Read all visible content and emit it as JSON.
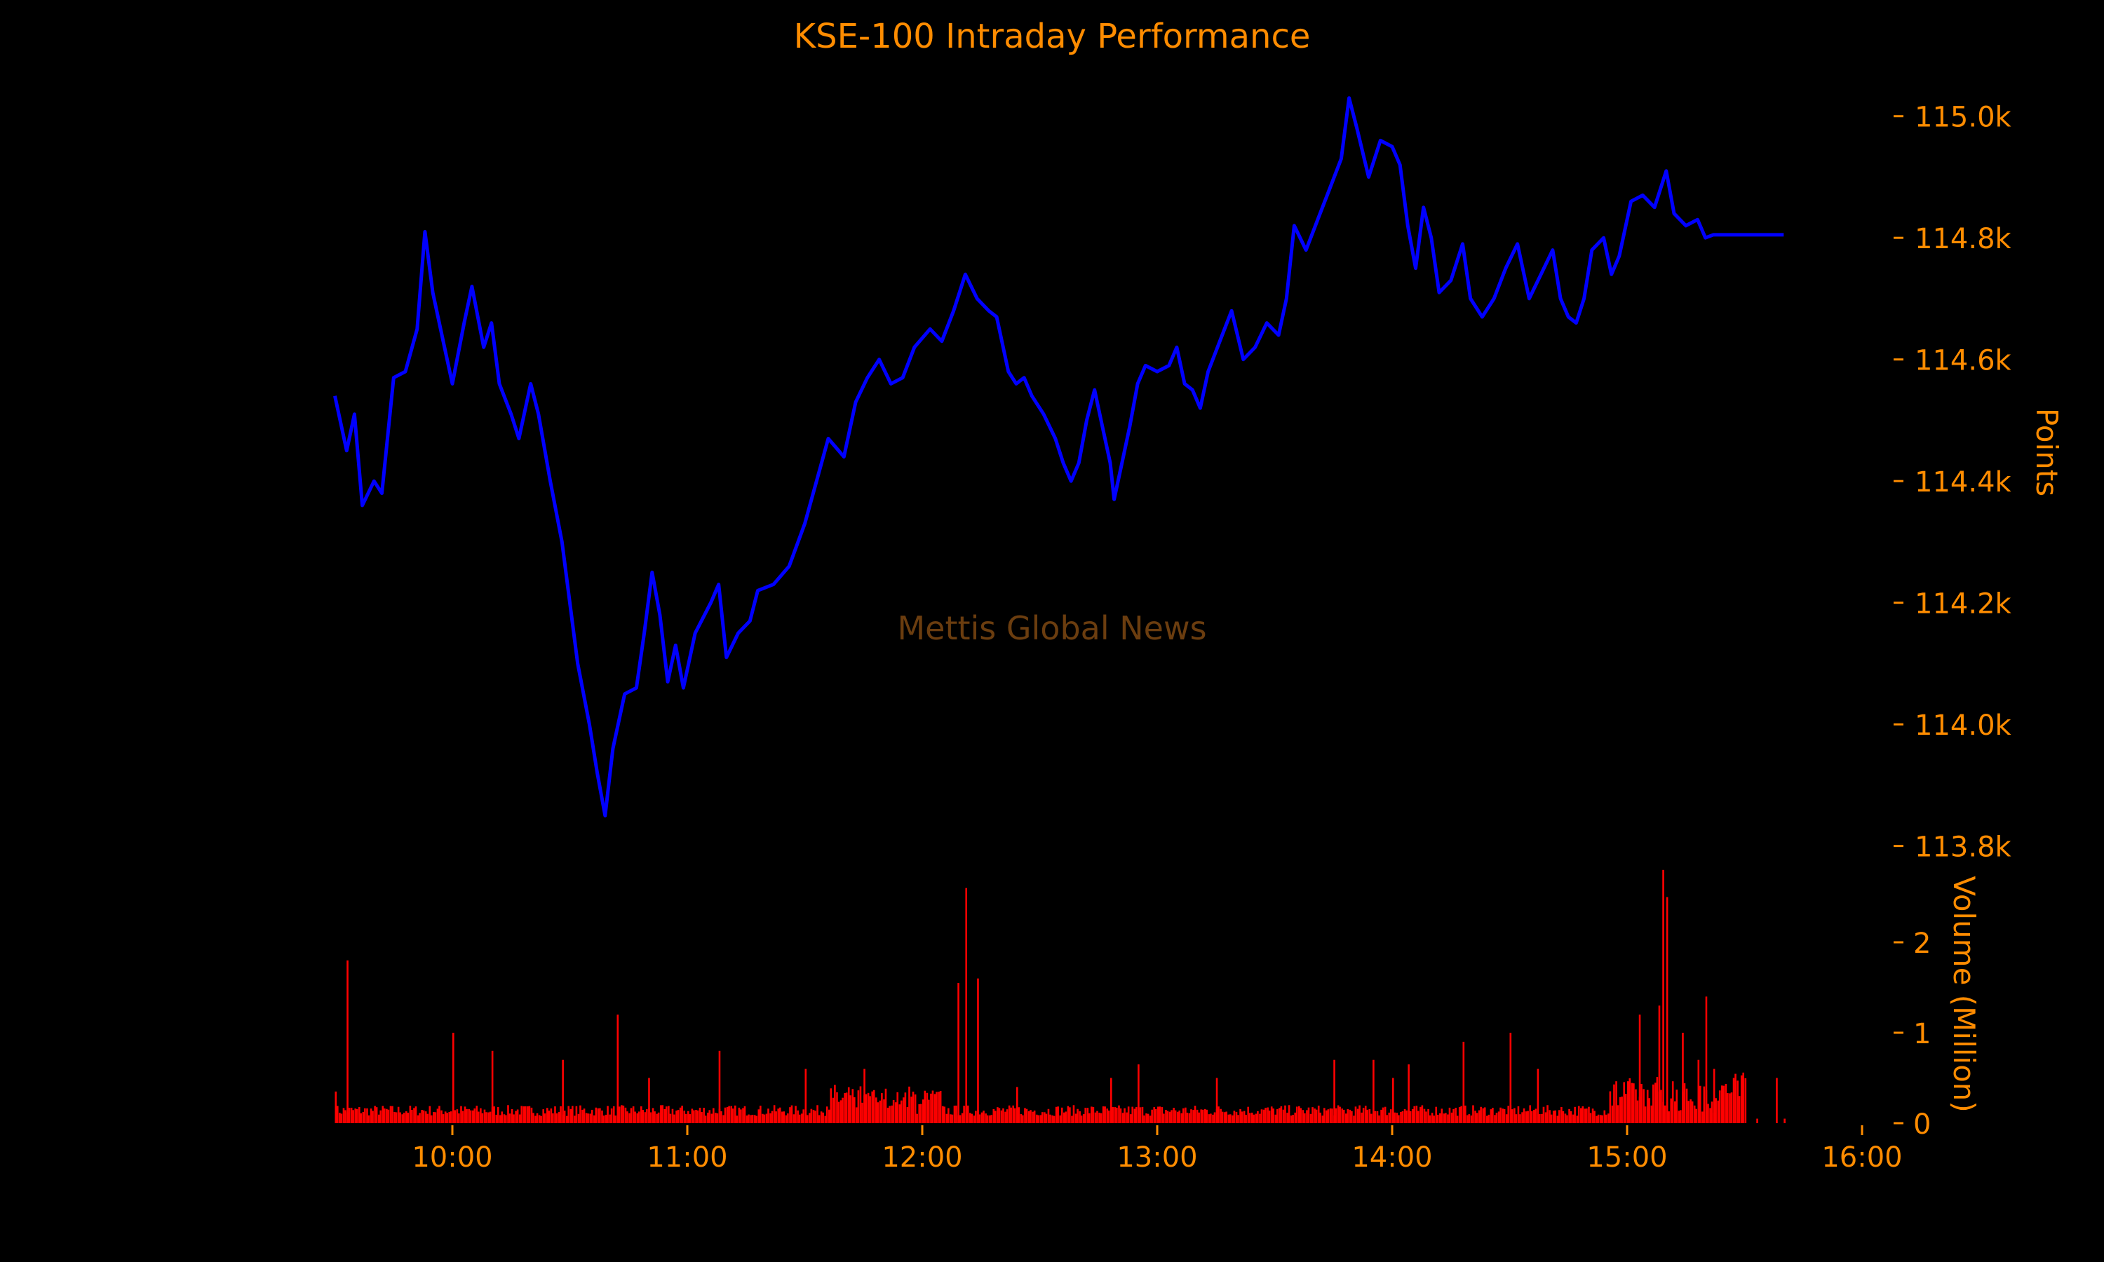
{
  "colors": {
    "background": "#000000",
    "text": "#ff8c00",
    "price_line": "#0000ff",
    "volume_bars": "#ff0000",
    "watermark": "#6b3d0f"
  },
  "watermark": "Mettis Global News",
  "chart_data": [
    {
      "type": "line",
      "title": "KSE-100 Intraday Performance",
      "ylabel": "Points",
      "y_axis_side": "right",
      "ylim": [
        113750,
        115070
      ],
      "xlim": [
        "09:30",
        "16:00"
      ],
      "grid": false,
      "x_ticks": [
        "10:00",
        "11:00",
        "12:00",
        "13:00",
        "14:00",
        "15:00",
        "16:00"
      ],
      "y_ticks": [
        {
          "value": 113800,
          "label": "113.8k"
        },
        {
          "value": 114000,
          "label": "114.0k"
        },
        {
          "value": 114200,
          "label": "114.2k"
        },
        {
          "value": 114400,
          "label": "114.4k"
        },
        {
          "value": 114600,
          "label": "114.6k"
        },
        {
          "value": 114800,
          "label": "114.8k"
        },
        {
          "value": 115000,
          "label": "115.0k"
        }
      ],
      "series": [
        {
          "values": [
            [
              "09:30",
              114540
            ],
            [
              "09:33",
              114450
            ],
            [
              "09:35",
              114510
            ],
            [
              "09:37",
              114360
            ],
            [
              "09:40",
              114400
            ],
            [
              "09:42",
              114380
            ],
            [
              "09:45",
              114570
            ],
            [
              "09:48",
              114580
            ],
            [
              "09:51",
              114650
            ],
            [
              "09:53",
              114810
            ],
            [
              "09:55",
              114710
            ],
            [
              "09:58",
              114620
            ],
            [
              "10:00",
              114560
            ],
            [
              "10:03",
              114660
            ],
            [
              "10:05",
              114720
            ],
            [
              "10:08",
              114620
            ],
            [
              "10:10",
              114660
            ],
            [
              "10:12",
              114560
            ],
            [
              "10:15",
              114510
            ],
            [
              "10:17",
              114470
            ],
            [
              "10:20",
              114560
            ],
            [
              "10:22",
              114510
            ],
            [
              "10:25",
              114400
            ],
            [
              "10:28",
              114300
            ],
            [
              "10:30",
              114200
            ],
            [
              "10:32",
              114100
            ],
            [
              "10:35",
              114000
            ],
            [
              "10:37",
              113920
            ],
            [
              "10:39",
              113850
            ],
            [
              "10:41",
              113960
            ],
            [
              "10:44",
              114050
            ],
            [
              "10:47",
              114060
            ],
            [
              "10:49",
              114150
            ],
            [
              "10:51",
              114250
            ],
            [
              "10:53",
              114180
            ],
            [
              "10:55",
              114070
            ],
            [
              "10:57",
              114130
            ],
            [
              "10:59",
              114060
            ],
            [
              "11:02",
              114150
            ],
            [
              "11:06",
              114200
            ],
            [
              "11:08",
              114230
            ],
            [
              "11:10",
              114110
            ],
            [
              "11:13",
              114150
            ],
            [
              "11:16",
              114170
            ],
            [
              "11:18",
              114220
            ],
            [
              "11:22",
              114230
            ],
            [
              "11:26",
              114260
            ],
            [
              "11:30",
              114330
            ],
            [
              "11:33",
              114400
            ],
            [
              "11:36",
              114470
            ],
            [
              "11:40",
              114440
            ],
            [
              "11:43",
              114530
            ],
            [
              "11:46",
              114570
            ],
            [
              "11:49",
              114600
            ],
            [
              "11:52",
              114560
            ],
            [
              "11:55",
              114570
            ],
            [
              "11:58",
              114620
            ],
            [
              "12:02",
              114650
            ],
            [
              "12:05",
              114630
            ],
            [
              "12:08",
              114680
            ],
            [
              "12:11",
              114740
            ],
            [
              "12:14",
              114700
            ],
            [
              "12:17",
              114680
            ],
            [
              "12:19",
              114670
            ],
            [
              "12:22",
              114580
            ],
            [
              "12:24",
              114560
            ],
            [
              "12:26",
              114570
            ],
            [
              "12:28",
              114540
            ],
            [
              "12:31",
              114510
            ],
            [
              "12:34",
              114470
            ],
            [
              "12:36",
              114430
            ],
            [
              "12:38",
              114400
            ],
            [
              "12:40",
              114430
            ],
            [
              "12:42",
              114500
            ],
            [
              "12:44",
              114550
            ],
            [
              "12:46",
              114490
            ],
            [
              "12:48",
              114430
            ],
            [
              "12:49",
              114370
            ],
            [
              "12:51",
              114430
            ],
            [
              "12:53",
              114490
            ],
            [
              "12:55",
              114560
            ],
            [
              "12:57",
              114590
            ],
            [
              "13:00",
              114580
            ],
            [
              "13:03",
              114590
            ],
            [
              "13:05",
              114620
            ],
            [
              "13:07",
              114560
            ],
            [
              "13:09",
              114550
            ],
            [
              "13:11",
              114520
            ],
            [
              "13:13",
              114580
            ],
            [
              "13:16",
              114630
            ],
            [
              "13:19",
              114680
            ],
            [
              "13:22",
              114600
            ],
            [
              "13:25",
              114620
            ],
            [
              "13:28",
              114660
            ],
            [
              "13:31",
              114640
            ],
            [
              "13:33",
              114700
            ],
            [
              "13:35",
              114820
            ],
            [
              "13:38",
              114780
            ],
            [
              "13:41",
              114830
            ],
            [
              "13:44",
              114880
            ],
            [
              "13:47",
              114930
            ],
            [
              "13:49",
              115030
            ],
            [
              "13:51",
              114980
            ],
            [
              "13:54",
              114900
            ],
            [
              "13:57",
              114960
            ],
            [
              "14:00",
              114950
            ],
            [
              "14:02",
              114920
            ],
            [
              "14:04",
              114820
            ],
            [
              "14:06",
              114750
            ],
            [
              "14:08",
              114850
            ],
            [
              "14:10",
              114800
            ],
            [
              "14:12",
              114710
            ],
            [
              "14:15",
              114730
            ],
            [
              "14:18",
              114790
            ],
            [
              "14:20",
              114700
            ],
            [
              "14:23",
              114670
            ],
            [
              "14:26",
              114700
            ],
            [
              "14:29",
              114750
            ],
            [
              "14:32",
              114790
            ],
            [
              "14:35",
              114700
            ],
            [
              "14:38",
              114740
            ],
            [
              "14:41",
              114780
            ],
            [
              "14:43",
              114700
            ],
            [
              "14:45",
              114670
            ],
            [
              "14:47",
              114660
            ],
            [
              "14:49",
              114700
            ],
            [
              "14:51",
              114780
            ],
            [
              "14:54",
              114800
            ],
            [
              "14:56",
              114740
            ],
            [
              "14:58",
              114770
            ],
            [
              "15:01",
              114860
            ],
            [
              "15:04",
              114870
            ],
            [
              "15:07",
              114850
            ],
            [
              "15:10",
              114910
            ],
            [
              "15:12",
              114840
            ],
            [
              "15:15",
              114820
            ],
            [
              "15:18",
              114830
            ],
            [
              "15:20",
              114800
            ],
            [
              "15:22",
              114805
            ],
            [
              "15:40",
              114805
            ]
          ]
        }
      ]
    },
    {
      "type": "bar",
      "ylabel": "Volume (Million)",
      "y_axis_side": "right",
      "ylim": [
        0,
        2.7
      ],
      "grid": false,
      "y_ticks": [
        {
          "value": 0,
          "label": "0"
        },
        {
          "value": 1,
          "label": "1"
        },
        {
          "value": 2,
          "label": "2"
        }
      ],
      "spikes": [
        [
          "09:30",
          0.35
        ],
        [
          "09:33",
          1.8
        ],
        [
          "10:00",
          1.0
        ],
        [
          "10:10",
          0.8
        ],
        [
          "10:28",
          0.7
        ],
        [
          "10:42",
          1.2
        ],
        [
          "10:50",
          0.5
        ],
        [
          "11:08",
          0.8
        ],
        [
          "11:30",
          0.6
        ],
        [
          "11:45",
          0.6
        ],
        [
          "12:09",
          1.55
        ],
        [
          "12:11",
          2.6
        ],
        [
          "12:14",
          1.6
        ],
        [
          "12:24",
          0.4
        ],
        [
          "12:48",
          0.5
        ],
        [
          "12:55",
          0.65
        ],
        [
          "13:15",
          0.5
        ],
        [
          "13:45",
          0.7
        ],
        [
          "13:55",
          0.7
        ],
        [
          "14:00",
          0.5
        ],
        [
          "14:04",
          0.65
        ],
        [
          "14:18",
          0.9
        ],
        [
          "14:30",
          1.0
        ],
        [
          "14:37",
          0.6
        ],
        [
          "15:03",
          1.2
        ],
        [
          "15:08",
          1.3
        ],
        [
          "15:09",
          2.8
        ],
        [
          "15:10",
          2.5
        ],
        [
          "15:14",
          1.0
        ],
        [
          "15:18",
          0.7
        ],
        [
          "15:20",
          1.4
        ],
        [
          "15:22",
          0.6
        ],
        [
          "15:33",
          0.05
        ],
        [
          "15:38",
          0.5
        ],
        [
          "15:40",
          0.05
        ]
      ]
    }
  ]
}
